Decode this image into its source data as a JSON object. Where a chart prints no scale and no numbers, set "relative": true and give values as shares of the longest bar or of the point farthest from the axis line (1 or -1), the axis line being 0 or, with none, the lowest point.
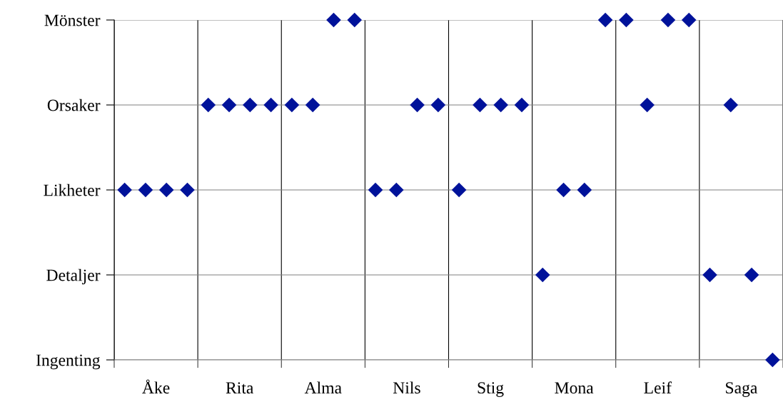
{
  "chart_data": {
    "type": "scatter",
    "marker": "diamond",
    "grid": true,
    "legend": false,
    "relative": true,
    "categories": [
      "Åke",
      "Rita",
      "Alma",
      "Nils",
      "Stig",
      "Mona",
      "Leif",
      "Saga"
    ],
    "y_categories": [
      "Mönster",
      "Orsaker",
      "Likheter",
      "Detaljer",
      "Ingenting"
    ],
    "series": [
      {
        "color": "#00129a",
        "values": [
          0.5,
          0.75,
          0.75,
          0.5,
          0.5,
          0.25,
          1,
          0.25
        ]
      },
      {
        "color": "#00129a",
        "values": [
          0.5,
          0.75,
          0.75,
          0.5,
          0.75,
          0.5,
          0.75,
          0.75
        ]
      },
      {
        "color": "#00129a",
        "values": [
          0.5,
          0.75,
          1,
          0.75,
          0.75,
          0.5,
          1,
          0.25
        ]
      },
      {
        "color": "#00129a",
        "values": [
          0.5,
          0.75,
          1,
          0.75,
          0.75,
          1,
          1,
          0
        ]
      }
    ]
  }
}
